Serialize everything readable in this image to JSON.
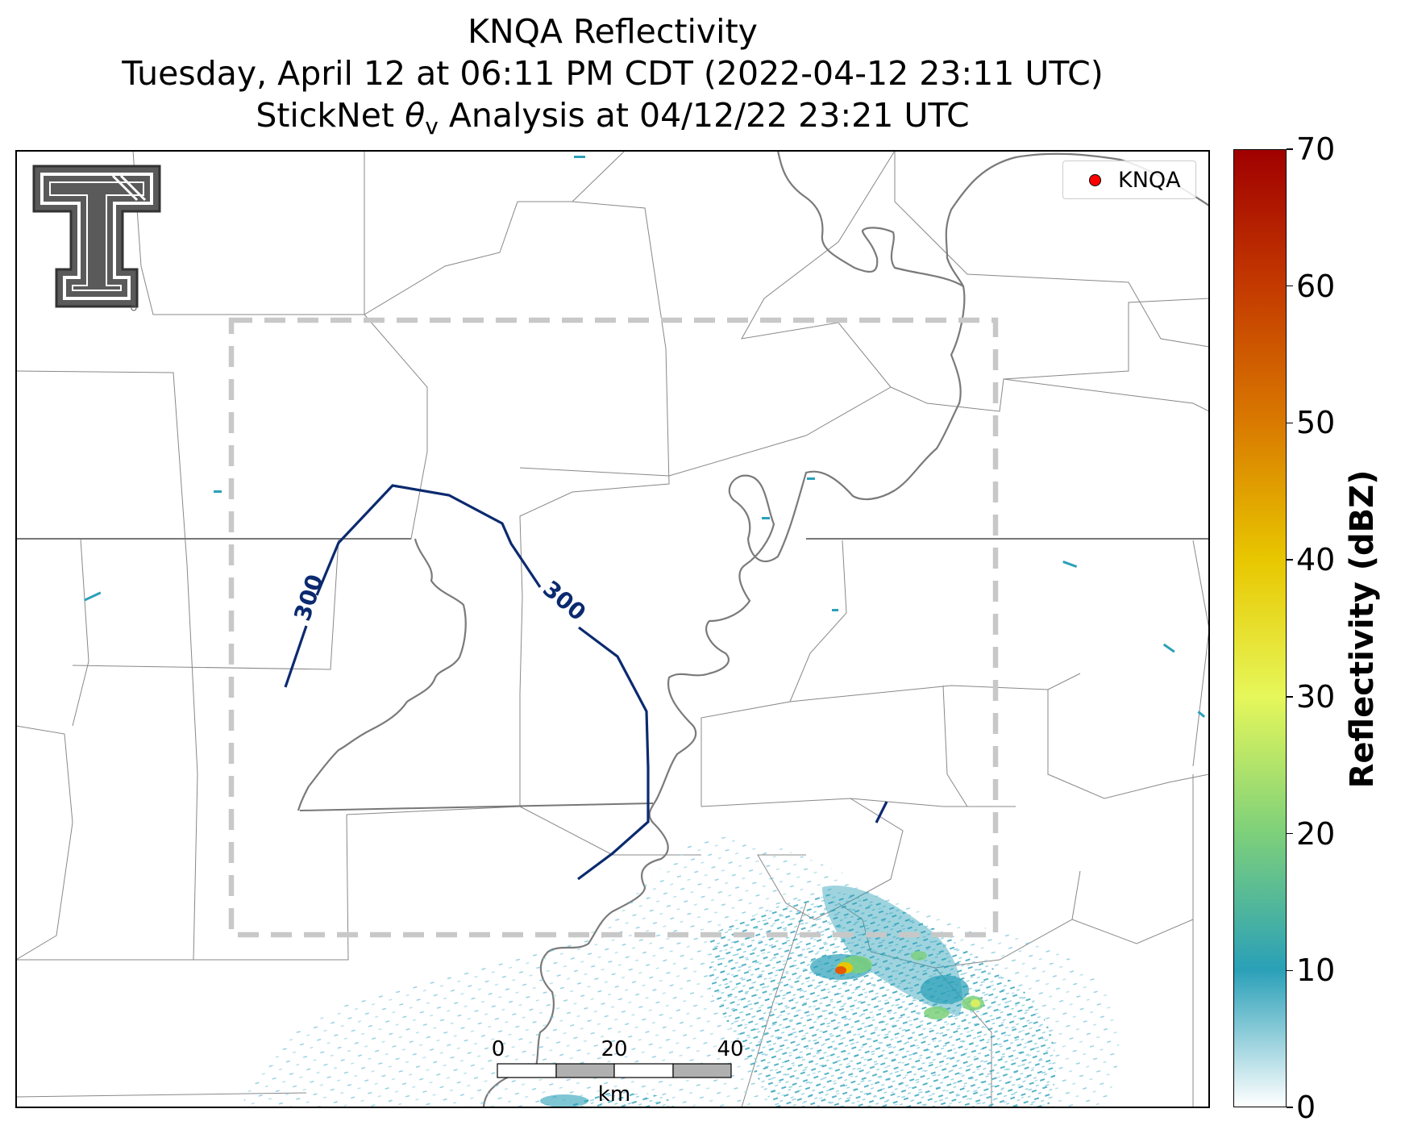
{
  "title": {
    "line1": "KNQA Reflectivity",
    "line2": "Tuesday, April 12 at 06:11 PM CDT (2022-04-12 23:11 UTC)",
    "line3_prefix": "StickNet ",
    "line3_symbol": "θ",
    "line3_subscript": "v",
    "line3_suffix": " Analysis at 04/12/22 23:21 UTC"
  },
  "legend": {
    "label": "KNQA",
    "marker_color": "#ff0000"
  },
  "contour": {
    "label": "300",
    "color": "#0b2a6f"
  },
  "analysis_box": {
    "style": "dashed",
    "color": "#c8c8c8"
  },
  "scalebar": {
    "labels": [
      "0",
      "20",
      "40"
    ],
    "unit": "km"
  },
  "colorbar": {
    "title": "Reflectivity (dBZ)",
    "min": 0,
    "max": 70,
    "ticks": [
      "0",
      "10",
      "20",
      "30",
      "40",
      "50",
      "60",
      "70"
    ],
    "colors": [
      "#ffffff",
      "#2aa0b8",
      "#7dd07a",
      "#e6f75a",
      "#e8c700",
      "#d97a00",
      "#c43a00",
      "#a00000"
    ]
  },
  "logo": {
    "icon": "texas-tech-double-t-logo-icon"
  }
}
